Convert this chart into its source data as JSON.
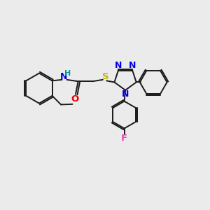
{
  "bg_color": "#ebebeb",
  "bond_color": "#1a1a1a",
  "bond_lw": 1.4,
  "font_size": 8.5,
  "atoms": {
    "N_color": "#0000ee",
    "O_color": "#ee0000",
    "S_color": "#b8b800",
    "F_color": "#ee44bb",
    "H_color": "#009999",
    "C_color": "#1a1a1a"
  },
  "xlim": [
    0,
    10
  ],
  "ylim": [
    0,
    10
  ]
}
